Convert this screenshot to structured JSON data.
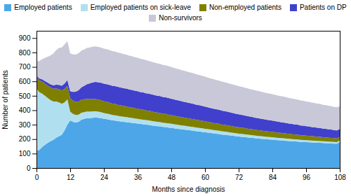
{
  "chart_data": {
    "type": "area",
    "stacked": true,
    "legend": "top",
    "xlabel": "Months since diagnosis",
    "ylabel": "Number of patients",
    "xlim": [
      0,
      108
    ],
    "ylim": [
      0,
      950
    ],
    "xticks": [
      0,
      12,
      24,
      36,
      48,
      60,
      72,
      84,
      96,
      108
    ],
    "yticks": [
      0,
      100,
      200,
      300,
      400,
      500,
      600,
      700,
      800,
      900
    ],
    "x": [
      0,
      1,
      2,
      3,
      4,
      5,
      6,
      7,
      8,
      9,
      10,
      11,
      12,
      13,
      14,
      15,
      16,
      17,
      18,
      19,
      20,
      21,
      22,
      23,
      24,
      25,
      26,
      27,
      28,
      29,
      30,
      31,
      32,
      33,
      34,
      35,
      36,
      37,
      38,
      39,
      40,
      41,
      42,
      43,
      44,
      45,
      46,
      47,
      48,
      49,
      50,
      51,
      52,
      53,
      54,
      55,
      56,
      57,
      58,
      59,
      60,
      61,
      62,
      63,
      64,
      65,
      66,
      67,
      68,
      69,
      70,
      71,
      72,
      73,
      74,
      75,
      76,
      77,
      78,
      79,
      80,
      81,
      82,
      83,
      84,
      85,
      86,
      87,
      88,
      89,
      90,
      91,
      92,
      93,
      94,
      95,
      96,
      97,
      98,
      99,
      100,
      101,
      102,
      103,
      104,
      105,
      106,
      107,
      108
    ],
    "series": [
      {
        "name": "Employed patients",
        "color": "#4da6e8",
        "values": [
          120,
          125,
          145,
          160,
          175,
          185,
          195,
          210,
          220,
          230,
          260,
          300,
          330,
          320,
          315,
          320,
          335,
          340,
          345,
          345,
          348,
          350,
          348,
          345,
          340,
          338,
          335,
          330,
          328,
          325,
          322,
          320,
          318,
          315,
          313,
          310,
          308,
          305,
          303,
          300,
          298,
          295,
          292,
          290,
          288,
          285,
          283,
          280,
          278,
          275,
          272,
          270,
          267,
          265,
          263,
          260,
          258,
          255,
          253,
          250,
          248,
          245,
          242,
          240,
          237,
          235,
          232,
          230,
          228,
          225,
          223,
          220,
          218,
          216,
          214,
          212,
          210,
          208,
          206,
          204,
          202,
          200,
          199,
          197,
          196,
          194,
          193,
          191,
          190,
          188,
          187,
          185,
          184,
          183,
          181,
          180,
          179,
          178,
          177,
          176,
          175,
          174,
          173,
          172,
          171,
          170,
          169,
          168,
          180
        ]
      },
      {
        "name": "Employed patients on sick-leave",
        "color": "#b0e0f0",
        "values": [
          430,
          400,
          370,
          340,
          310,
          285,
          265,
          250,
          235,
          215,
          195,
          175,
          60,
          55,
          52,
          50,
          48,
          47,
          46,
          45,
          44,
          43,
          42,
          41,
          40,
          39,
          38,
          37,
          37,
          36,
          36,
          35,
          35,
          34,
          34,
          33,
          33,
          32,
          32,
          32,
          31,
          31,
          30,
          30,
          30,
          29,
          29,
          29,
          28,
          28,
          28,
          27,
          27,
          27,
          26,
          26,
          26,
          25,
          25,
          25,
          24,
          24,
          24,
          23,
          23,
          23,
          22,
          22,
          22,
          21,
          21,
          21,
          20,
          20,
          20,
          19,
          19,
          19,
          18,
          18,
          18,
          18,
          17,
          17,
          17,
          17,
          16,
          16,
          16,
          16,
          15,
          15,
          15,
          15,
          14,
          14,
          14,
          14,
          13,
          13,
          13,
          13,
          12,
          12,
          12,
          12,
          11,
          11,
          10
        ]
      },
      {
        "name": "Non-employed patients",
        "color": "#808000",
        "values": [
          80,
          82,
          83,
          84,
          86,
          87,
          89,
          90,
          91,
          92,
          93,
          93,
          92,
          92,
          91,
          91,
          90,
          89,
          88,
          87,
          86,
          85,
          84,
          83,
          82,
          81,
          80,
          79,
          78,
          77,
          76,
          75,
          74,
          73,
          72,
          71,
          70,
          69,
          68,
          67,
          67,
          66,
          65,
          64,
          63,
          62,
          62,
          61,
          60,
          59,
          58,
          58,
          57,
          56,
          55,
          55,
          54,
          53,
          53,
          52,
          51,
          51,
          50,
          49,
          49,
          48,
          47,
          47,
          46,
          46,
          45,
          44,
          44,
          43,
          43,
          42,
          41,
          41,
          40,
          40,
          39,
          39,
          38,
          38,
          37,
          37,
          36,
          36,
          35,
          35,
          34,
          34,
          33,
          33,
          32,
          32,
          31,
          31,
          30,
          30,
          29,
          29,
          28,
          28,
          27,
          27,
          26,
          26,
          25
        ]
      },
      {
        "name": "Patients on DP",
        "color": "#4040cc",
        "values": [
          10,
          13,
          16,
          18,
          20,
          22,
          24,
          27,
          30,
          33,
          37,
          42,
          50,
          60,
          70,
          78,
          86,
          94,
          102,
          110,
          115,
          118,
          120,
          121,
          122,
          123,
          123,
          124,
          124,
          124,
          124,
          123,
          123,
          122,
          122,
          121,
          121,
          120,
          120,
          119,
          119,
          118,
          118,
          117,
          117,
          116,
          116,
          115,
          114,
          113,
          112,
          111,
          110,
          109,
          108,
          107,
          106,
          105,
          104,
          103,
          102,
          101,
          100,
          99,
          98,
          97,
          96,
          95,
          94,
          93,
          92,
          91,
          90,
          89,
          88,
          87,
          86,
          85,
          84,
          83,
          82,
          81,
          80,
          79,
          78,
          77,
          76,
          75,
          74,
          73,
          72,
          71,
          70,
          69,
          68,
          67,
          66,
          65,
          64,
          63,
          62,
          61,
          60,
          59,
          58,
          57,
          56,
          55,
          55
        ]
      },
      {
        "name": "Non-survivors",
        "color": "#c8c8d8",
        "values": [
          100,
          120,
          140,
          160,
          180,
          200,
          220,
          240,
          255,
          265,
          270,
          268,
          262,
          260,
          258,
          256,
          254,
          252,
          250,
          248,
          247,
          246,
          245,
          244,
          243,
          242,
          241,
          240,
          239,
          238,
          237,
          236,
          235,
          234,
          233,
          232,
          231,
          230,
          229,
          228,
          227,
          226,
          225,
          224,
          223,
          222,
          221,
          220,
          219,
          218,
          217,
          216,
          215,
          214,
          213,
          212,
          211,
          210,
          209,
          208,
          207,
          206,
          205,
          204,
          203,
          202,
          201,
          200,
          199,
          198,
          197,
          196,
          195,
          194,
          193,
          192,
          191,
          190,
          189,
          188,
          187,
          186,
          185,
          184,
          183,
          182,
          181,
          180,
          179,
          178,
          177,
          176,
          175,
          174,
          173,
          172,
          171,
          170,
          169,
          168,
          167,
          166,
          165,
          164,
          163,
          162,
          161,
          160,
          158
        ]
      }
    ]
  }
}
